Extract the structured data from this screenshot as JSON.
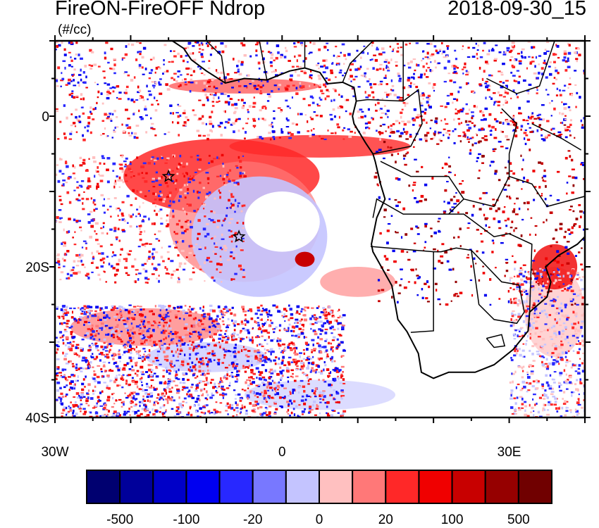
{
  "title": "FireON-FireOFF Ndrop",
  "datetime": "2018-09-30_15",
  "units": "(#/cc)",
  "chart_data": {
    "type": "heatmap",
    "variable": "Ndrop difference (FireON-FireOFF)",
    "lon_range": [
      -30,
      40
    ],
    "lat_range": [
      -40,
      10
    ],
    "x_tick_labels": [
      {
        "value": -30,
        "label": "30W"
      },
      {
        "value": 0,
        "label": "0"
      },
      {
        "value": 30,
        "label": "30E"
      }
    ],
    "y_tick_labels": [
      {
        "value": 0,
        "label": "0"
      },
      {
        "value": -20,
        "label": "20S"
      },
      {
        "value": -40,
        "label": "40S"
      }
    ],
    "markers": [
      {
        "lon": -15,
        "lat": -8,
        "symbol": "star"
      },
      {
        "lon": -5.7,
        "lat": -16,
        "symbol": "star"
      }
    ],
    "colorbar": {
      "levels": [
        -500,
        -200,
        -100,
        -50,
        -20,
        -10,
        0,
        10,
        20,
        50,
        100,
        200,
        500
      ],
      "labels": [
        "-500",
        "-100",
        "-20",
        "0",
        "20",
        "100",
        "500"
      ],
      "colors": [
        "#000070",
        "#00009a",
        "#0000c8",
        "#0000f0",
        "#2828ff",
        "#7878ff",
        "#c4c4ff",
        "#ffc0c0",
        "#ff7878",
        "#ff2828",
        "#f00000",
        "#c80000",
        "#960000",
        "#700000"
      ]
    }
  }
}
